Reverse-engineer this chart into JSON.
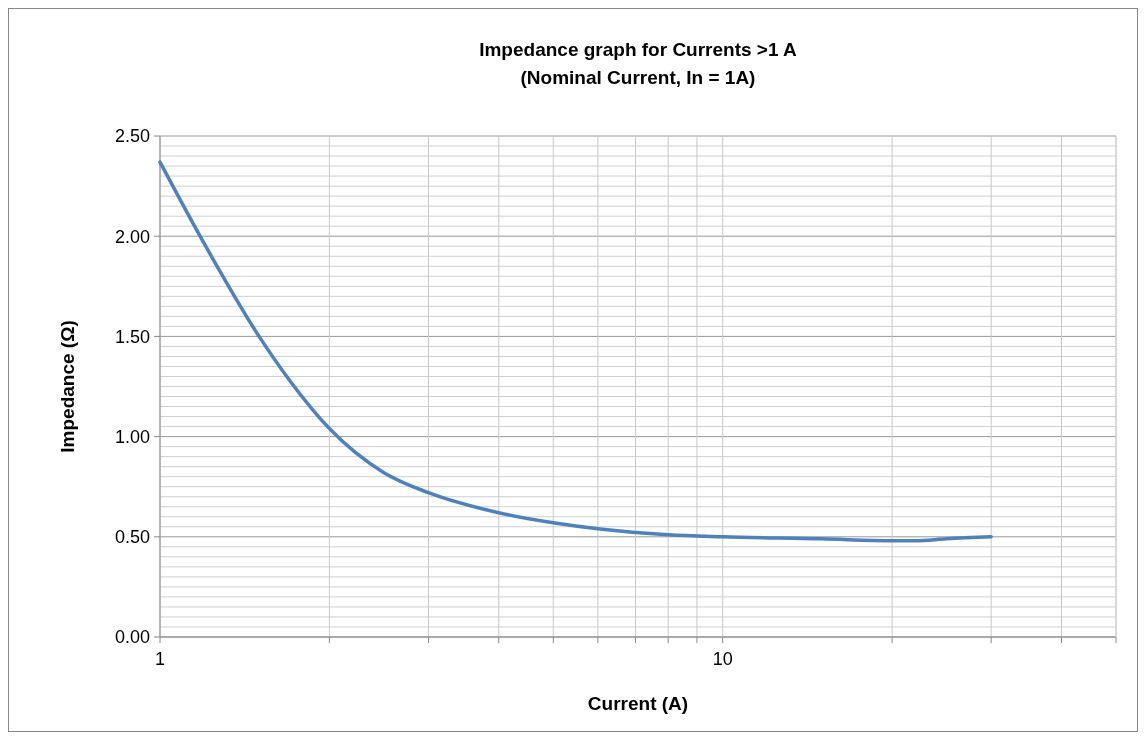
{
  "chart_data": {
    "type": "line",
    "title": "Impedance graph for Currents >1 A\n(Nominal Current, In = 1A)",
    "xlabel": "Current (A)",
    "ylabel": "Impedance (Ω)",
    "log": "x",
    "grid": true,
    "marker": "none",
    "line_style": "solid",
    "xlim": [
      1,
      50
    ],
    "ylim": [
      0,
      2.5
    ],
    "xticks": [
      1,
      {
        "value": 2,
        "label": null
      },
      {
        "value": 3,
        "label": null
      },
      {
        "value": 4,
        "label": null
      },
      {
        "value": 5,
        "label": null
      },
      {
        "value": 6,
        "label": null
      },
      {
        "value": 7,
        "label": null
      },
      {
        "value": 8,
        "label": null
      },
      {
        "value": 9,
        "label": null
      },
      10,
      {
        "value": 20,
        "label": null
      },
      {
        "value": 30,
        "label": null
      },
      {
        "value": 40,
        "label": null
      },
      {
        "value": 50,
        "label": null
      }
    ],
    "yticks": [
      {
        "value": 0,
        "label": "0.00"
      },
      {
        "value": 0.05,
        "label": null
      },
      {
        "value": 0.1,
        "label": null
      },
      {
        "value": 0.15,
        "label": null
      },
      {
        "value": 0.2,
        "label": null
      },
      {
        "value": 0.25,
        "label": null
      },
      {
        "value": 0.3,
        "label": null
      },
      {
        "value": 0.35,
        "label": null
      },
      {
        "value": 0.4,
        "label": null
      },
      {
        "value": 0.45,
        "label": null
      },
      {
        "value": 0.5,
        "label": "0.50"
      },
      {
        "value": 0.55,
        "label": null
      },
      {
        "value": 0.6,
        "label": null
      },
      {
        "value": 0.65,
        "label": null
      },
      {
        "value": 0.7,
        "label": null
      },
      {
        "value": 0.75,
        "label": null
      },
      {
        "value": 0.8,
        "label": null
      },
      {
        "value": 0.85,
        "label": null
      },
      {
        "value": 0.9,
        "label": null
      },
      {
        "value": 0.95,
        "label": null
      },
      {
        "value": 1,
        "label": "1.00"
      },
      {
        "value": 1.05,
        "label": null
      },
      {
        "value": 1.1,
        "label": null
      },
      {
        "value": 1.15,
        "label": null
      },
      {
        "value": 1.2,
        "label": null
      },
      {
        "value": 1.25,
        "label": null
      },
      {
        "value": 1.3,
        "label": null
      },
      {
        "value": 1.35,
        "label": null
      },
      {
        "value": 1.4,
        "label": null
      },
      {
        "value": 1.45,
        "label": null
      },
      {
        "value": 1.5,
        "label": "1.50"
      },
      {
        "value": 1.55,
        "label": null
      },
      {
        "value": 1.6,
        "label": null
      },
      {
        "value": 1.65,
        "label": null
      },
      {
        "value": 1.7,
        "label": null
      },
      {
        "value": 1.75,
        "label": null
      },
      {
        "value": 1.8,
        "label": null
      },
      {
        "value": 1.85,
        "label": null
      },
      {
        "value": 1.9,
        "label": null
      },
      {
        "value": 1.95,
        "label": null
      },
      {
        "value": 2,
        "label": "2.00"
      },
      {
        "value": 2.05,
        "label": null
      },
      {
        "value": 2.1,
        "label": null
      },
      {
        "value": 2.15,
        "label": null
      },
      {
        "value": 2.2,
        "label": null
      },
      {
        "value": 2.25,
        "label": null
      },
      {
        "value": 2.3,
        "label": null
      },
      {
        "value": 2.35,
        "label": null
      },
      {
        "value": 2.4,
        "label": null
      },
      {
        "value": 2.45,
        "label": null
      },
      {
        "value": 2.5,
        "label": "2.50"
      }
    ],
    "x": [
      1,
      1.2,
      1.5,
      1.7,
      2,
      2.5,
      3,
      4,
      5,
      6,
      8,
      10,
      15,
      20,
      22,
      25,
      30
    ],
    "series": [
      {
        "color": "#4f81bd",
        "values": [
          2.37,
          1.96,
          1.5,
          1.28,
          1.04,
          0.82,
          0.72,
          0.62,
          0.57,
          0.54,
          0.51,
          0.5,
          0.49,
          0.48,
          0.48,
          0.49,
          0.5
        ]
      }
    ]
  }
}
